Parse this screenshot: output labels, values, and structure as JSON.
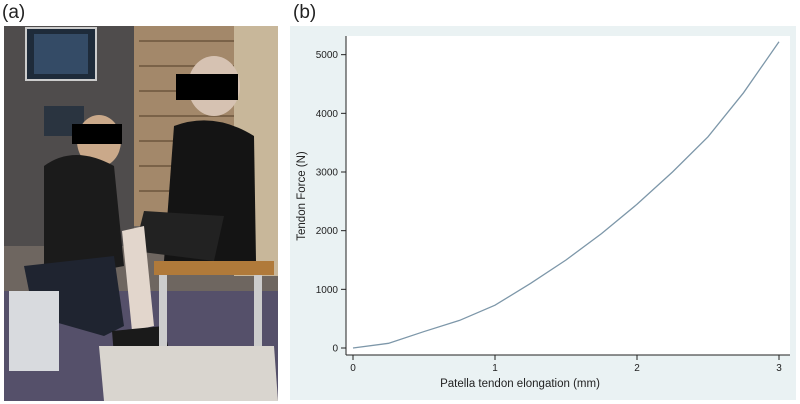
{
  "panels": {
    "a_label": "(a)",
    "b_label": "(b)"
  },
  "photo": {
    "description_icon": "clinical-photo"
  },
  "chart_data": {
    "type": "line",
    "title": "",
    "xlabel": "Patella tendon elongation (mm)",
    "ylabel": "Tendon Force (N)",
    "xlim": [
      0,
      3
    ],
    "ylim": [
      0,
      5250
    ],
    "xticks": [
      0,
      1,
      2,
      3
    ],
    "yticks": [
      0,
      1000,
      2000,
      3000,
      4000,
      5000
    ],
    "grid": false,
    "series": [
      {
        "color": "#7d97a9",
        "x": [
          0,
          0.25,
          0.5,
          0.75,
          1.0,
          1.25,
          1.5,
          1.75,
          2.0,
          2.25,
          2.5,
          2.75,
          3.0
        ],
        "y": [
          0,
          80,
          280,
          470,
          730,
          1100,
          1500,
          1950,
          2450,
          3000,
          3600,
          4350,
          5220
        ]
      }
    ],
    "colors": {
      "plot_bg": "#eaf2f3",
      "outer_bg": "#ffffff",
      "line": "#7d97a9",
      "axis": "#222222"
    }
  }
}
